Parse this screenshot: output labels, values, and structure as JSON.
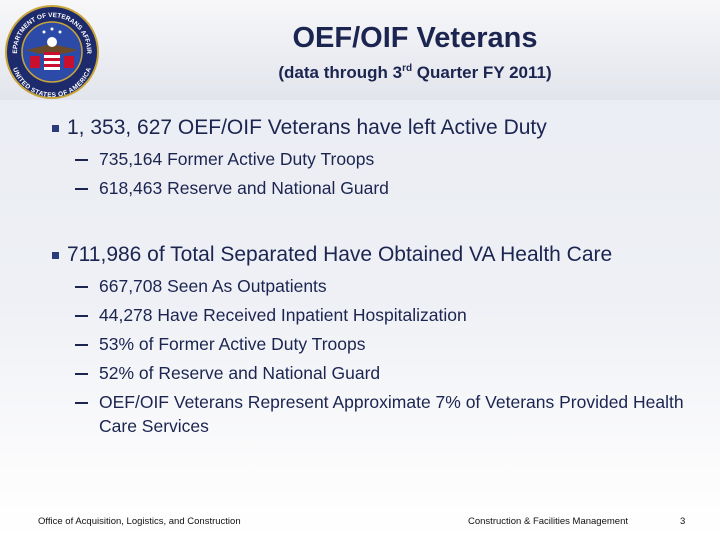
{
  "header": {
    "title": "OEF/OIF Veterans",
    "subtitle": {
      "before": "(data through 3",
      "superscript": "rd",
      "after": " Quarter FY 2011)"
    }
  },
  "seal": {
    "top_text": "DEPARTMENT OF VETERANS AFFAIRS",
    "bottom_text": "UNITED STATES OF AMERICA"
  },
  "bullets": [
    {
      "text": "1, 353, 627 OEF/OIF Veterans have left Active Duty",
      "items": [
        "735,164 Former Active Duty Troops",
        "618,463 Reserve and National Guard"
      ]
    },
    {
      "text": "711,986 of Total Separated Have Obtained VA Health Care",
      "items": [
        "667,708 Seen As Outpatients",
        "44,278 Have Received Inpatient Hospitalization",
        "53% of Former Active Duty Troops",
        "52% of Reserve and National Guard",
        "OEF/OIF Veterans Represent Approximate 7% of Veterans Provided Health Care Services"
      ]
    }
  ],
  "footer": {
    "left": "Office of Acquisition, Logistics, and Construction",
    "right": "Construction & Facilities Management",
    "page": "3"
  }
}
